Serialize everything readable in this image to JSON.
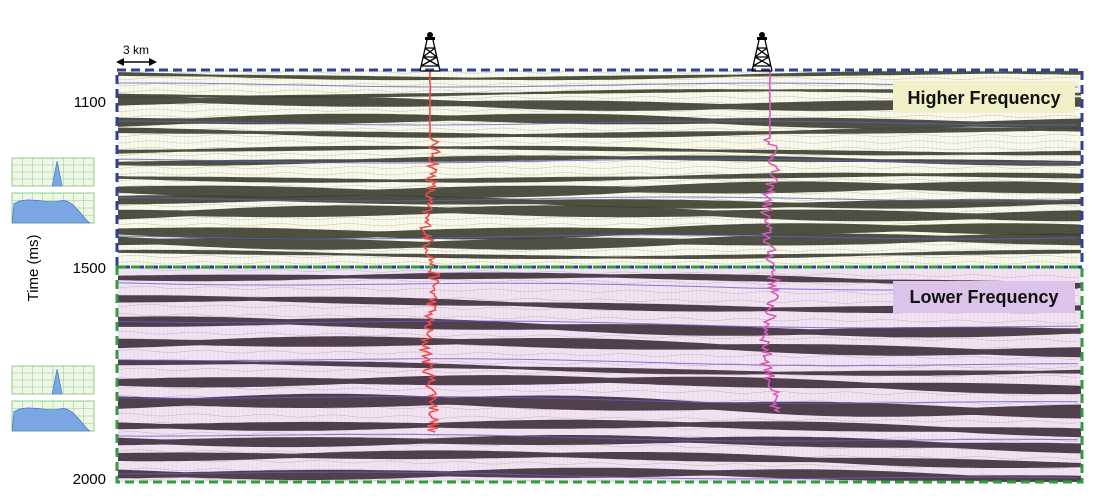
{
  "scale_bar": {
    "label": "3 km"
  },
  "y_axis": {
    "label": "Time (ms)",
    "ticks": [
      "1100",
      "1500",
      "2000"
    ]
  },
  "sections": [
    {
      "label": "Higher Frequency",
      "label_bg": "#f2f0c8",
      "fill": "#f9f9ec",
      "dark": "#3b3d30",
      "border": "#2f3f9e"
    },
    {
      "label": "Lower Frequency",
      "label_bg": "#dcc3ea",
      "fill": "#f3e2f4",
      "dark": "#3f2d3c",
      "border": "#2f9e3f"
    }
  ],
  "wells": [
    {
      "name": "well-1-icon",
      "log_color": "#ef4a4a"
    },
    {
      "name": "well-2-icon",
      "log_color": "#d65bb4"
    }
  ],
  "spectra_panel": {
    "grid_color": "#7ac46a",
    "fill_color": "#7aa7e3"
  }
}
